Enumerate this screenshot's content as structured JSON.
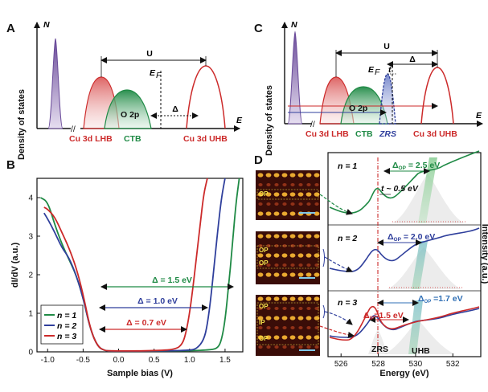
{
  "colors": {
    "red": "#cc2a2a",
    "green": "#1f8a45",
    "blue": "#2f3f9c",
    "purple": "#6b4c9a",
    "black": "#111111",
    "stm_dark": "#3a0d08",
    "stm_bright": "#f2b233",
    "cyan": "#5aa9cf"
  },
  "panelA": {
    "label": "A",
    "ylabel": "Density of states",
    "n_label": "N",
    "e_label": "E",
    "u_label": "U",
    "ef_label": "E",
    "ef_sub": "F",
    "delta_label": "Δ",
    "o2p_label": "O 2p",
    "lhb_label": "Cu 3d LHB",
    "ctb_label": "CTB",
    "uhb_label": "Cu 3d UHB"
  },
  "panelC": {
    "label": "C",
    "ylabel": "Density of states",
    "n_label": "N",
    "e_label": "E",
    "u_label": "U",
    "ef_label": "E",
    "ef_sub": "F",
    "t_label": "t",
    "delta_label": "Δ",
    "o2p_label": "O 2p",
    "lhb_label": "Cu 3d LHB",
    "ctb_label": "CTB",
    "zrs_label": "ZRS",
    "uhb_label": "Cu 3d UHB"
  },
  "panelB": {
    "label": "B",
    "ylabel": "dI/dV (a.u.)",
    "xlabel": "Sample bias (V)",
    "xticks": [
      "-1.0",
      "-0.5",
      "0.0",
      "0.5",
      "1.0",
      "1.5"
    ],
    "yticks": [
      "0",
      "1",
      "2",
      "3",
      "4"
    ],
    "legend": [
      {
        "name": "n = 1",
        "key": "green"
      },
      {
        "name": "n = 2",
        "key": "blue"
      },
      {
        "name": "n = 3",
        "key": "red"
      }
    ],
    "gaps": [
      {
        "text": "Δ = 1.5 eV",
        "key": "green"
      },
      {
        "text": "Δ = 1.0 eV",
        "key": "blue"
      },
      {
        "text": "Δ = 0.7 eV",
        "key": "red"
      }
    ]
  },
  "chart_data": {
    "type": "line",
    "xlabel": "Sample bias (V)",
    "ylabel": "dI/dV (a.u.)",
    "xlim": [
      -1.15,
      1.75
    ],
    "ylim": [
      0,
      4.5
    ],
    "series": [
      {
        "name": "n = 1",
        "x": [
          -1.1,
          -1.0,
          -0.9,
          -0.8,
          -0.7,
          -0.6,
          -0.5,
          -0.4,
          -0.3,
          -0.2,
          -0.1,
          0.0,
          0.5,
          1.0,
          1.3,
          1.4,
          1.45,
          1.5,
          1.55,
          1.6,
          1.65,
          1.7
        ],
        "y": [
          4.0,
          3.9,
          3.3,
          2.8,
          2.4,
          2.0,
          1.4,
          0.6,
          0.15,
          0.03,
          0.02,
          0.02,
          0.02,
          0.03,
          0.05,
          0.1,
          0.3,
          0.8,
          1.7,
          2.7,
          3.8,
          4.5
        ]
      },
      {
        "name": "n = 2",
        "x": [
          -1.05,
          -1.0,
          -0.9,
          -0.8,
          -0.7,
          -0.6,
          -0.5,
          -0.4,
          -0.3,
          -0.2,
          -0.1,
          0.0,
          0.5,
          1.0,
          1.1,
          1.2,
          1.25,
          1.3,
          1.35,
          1.4,
          1.45,
          1.5
        ],
        "y": [
          3.6,
          3.45,
          3.1,
          2.7,
          2.45,
          2.0,
          1.4,
          0.6,
          0.15,
          0.03,
          0.02,
          0.02,
          0.02,
          0.04,
          0.08,
          0.3,
          0.7,
          1.4,
          2.3,
          3.2,
          4.0,
          4.5
        ]
      },
      {
        "name": "n = 3",
        "x": [
          -1.05,
          -1.0,
          -0.9,
          -0.8,
          -0.7,
          -0.6,
          -0.5,
          -0.4,
          -0.3,
          -0.2,
          -0.1,
          0.0,
          0.5,
          0.8,
          0.9,
          0.95,
          1.0,
          1.05,
          1.1,
          1.15,
          1.2,
          1.25
        ],
        "y": [
          3.75,
          3.7,
          3.5,
          3.1,
          2.7,
          2.2,
          1.5,
          0.6,
          0.15,
          0.03,
          0.03,
          0.02,
          0.03,
          0.06,
          0.2,
          0.5,
          1.0,
          1.7,
          2.5,
          3.3,
          4.1,
          4.5
        ]
      }
    ]
  },
  "panelD": {
    "label": "D",
    "xlabel": "Energy (eV)",
    "ylabel": "Intensity (a.u.)",
    "xticks": [
      "526",
      "528",
      "530",
      "532"
    ],
    "rows": [
      {
        "n": "n = 1",
        "delta_op": "Δ",
        "delta_sub": "OP",
        "delta_val": " = 2.5 eV",
        "t_text": "t ~ 0.5 eV",
        "stm": [
          "OP"
        ]
      },
      {
        "n": "n = 2",
        "delta_op": "Δ",
        "delta_sub": "OP",
        "delta_val": " = 2.0 eV",
        "stm": [
          "OP",
          "OP"
        ]
      },
      {
        "n": "n = 3",
        "delta_op": "Δ",
        "delta_sub": "OP",
        "delta_val": " =1.7 eV",
        "delta_ip": "Δ",
        "delta_ip_sub": "IP",
        "delta_ip_val": "=1.5 eV",
        "stm": [
          "OP",
          "IP",
          "OP"
        ]
      }
    ],
    "zrs_label": "ZRS",
    "uhb_label": "UHB"
  }
}
